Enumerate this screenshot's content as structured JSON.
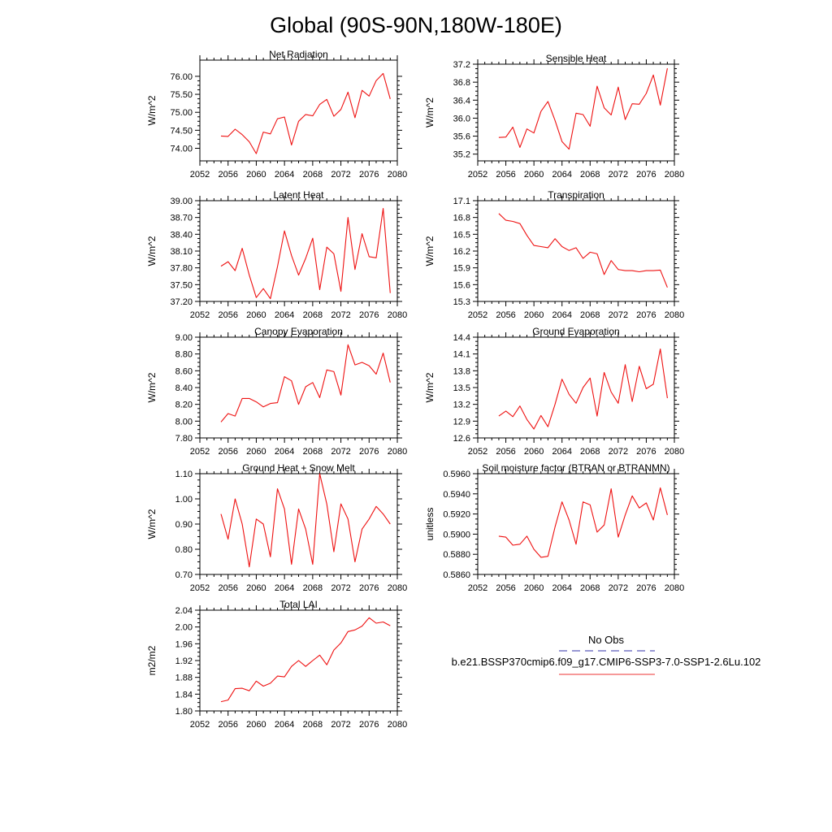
{
  "figure": {
    "title": "Global (90S-90N,180W-180E)"
  },
  "legend": {
    "items": [
      {
        "label": "No Obs",
        "color": "#3333aa",
        "style": "dashed"
      },
      {
        "label": "b.e21.BSSP370cmip6.f09_g17.CMIP6-SSP3-7.0-SSP1-2.6Lu.102",
        "color": "#ee3333",
        "style": "solid"
      }
    ]
  },
  "chart_data": [
    {
      "type": "line",
      "title": "Net Radiation",
      "ylabel": "W/m^2",
      "xlim": [
        2052,
        2080
      ],
      "ylim": [
        73.65,
        76.45
      ],
      "xticks": [
        2052,
        2056,
        2060,
        2064,
        2068,
        2072,
        2076,
        2080
      ],
      "xtick_labels": [
        "2052",
        "2056",
        "2060",
        "2064",
        "2068",
        "2072",
        "2076",
        "2080"
      ],
      "yticks": [
        74.0,
        74.5,
        75.0,
        75.5,
        76.0
      ],
      "ytick_labels": [
        "74.00",
        "74.50",
        "75.00",
        "75.50",
        "76.00"
      ],
      "series": [
        {
          "color": "#ee1111",
          "x": [
            2055,
            2056,
            2057,
            2058,
            2059,
            2060,
            2061,
            2062,
            2063,
            2064,
            2065,
            2066,
            2067,
            2068,
            2069,
            2070,
            2071,
            2072,
            2073,
            2074,
            2075,
            2076,
            2077,
            2078,
            2079
          ],
          "y": [
            74.34,
            74.33,
            74.53,
            74.38,
            74.18,
            73.85,
            74.45,
            74.4,
            74.82,
            74.87,
            74.09,
            74.75,
            74.94,
            74.9,
            75.22,
            75.36,
            74.89,
            75.08,
            75.56,
            74.85,
            75.61,
            75.45,
            75.88,
            76.08,
            75.37
          ]
        }
      ]
    },
    {
      "type": "line",
      "title": "Sensible Heat",
      "ylabel": "W/m^2",
      "xlim": [
        2052,
        2080
      ],
      "ylim": [
        35.05,
        37.2
      ],
      "xticks": [
        2052,
        2056,
        2060,
        2064,
        2068,
        2072,
        2076,
        2080
      ],
      "xtick_labels": [
        "2052",
        "2056",
        "2060",
        "2064",
        "2068",
        "2072",
        "2076",
        "2080"
      ],
      "yticks": [
        35.2,
        35.6,
        36.0,
        36.4,
        36.8,
        37.2
      ],
      "ytick_labels": [
        "35.2",
        "35.6",
        "36.0",
        "36.4",
        "36.8",
        "37.2"
      ],
      "series": [
        {
          "color": "#ee1111",
          "x": [
            2055,
            2056,
            2057,
            2058,
            2059,
            2060,
            2061,
            2062,
            2063,
            2064,
            2065,
            2066,
            2067,
            2068,
            2069,
            2070,
            2071,
            2072,
            2073,
            2074,
            2075,
            2076,
            2077,
            2078,
            2079
          ],
          "y": [
            35.57,
            35.58,
            35.8,
            35.35,
            35.76,
            35.67,
            36.15,
            36.37,
            35.95,
            35.48,
            35.31,
            36.11,
            36.08,
            35.82,
            36.71,
            36.23,
            36.07,
            36.69,
            35.97,
            36.32,
            36.31,
            36.55,
            36.96,
            36.29,
            37.11
          ]
        }
      ]
    },
    {
      "type": "line",
      "title": "Latent Heat",
      "ylabel": "W/m^2",
      "xlim": [
        2052,
        2080
      ],
      "ylim": [
        37.2,
        39.0
      ],
      "xticks": [
        2052,
        2056,
        2060,
        2064,
        2068,
        2072,
        2076,
        2080
      ],
      "xtick_labels": [
        "2052",
        "2056",
        "2060",
        "2064",
        "2068",
        "2072",
        "2076",
        "2080"
      ],
      "yticks": [
        37.2,
        37.5,
        37.8,
        38.1,
        38.4,
        38.7,
        39.0
      ],
      "ytick_labels": [
        "37.20",
        "37.50",
        "37.80",
        "38.10",
        "38.40",
        "38.70",
        "39.00"
      ],
      "series": [
        {
          "color": "#ee1111",
          "x": [
            2055,
            2056,
            2057,
            2058,
            2059,
            2060,
            2061,
            2062,
            2063,
            2064,
            2065,
            2066,
            2067,
            2068,
            2069,
            2070,
            2071,
            2072,
            2073,
            2074,
            2075,
            2076,
            2077,
            2078,
            2079
          ],
          "y": [
            37.83,
            37.91,
            37.75,
            38.15,
            37.67,
            37.27,
            37.43,
            37.25,
            37.82,
            38.46,
            38.02,
            37.67,
            37.97,
            38.33,
            37.41,
            38.17,
            38.05,
            37.38,
            38.7,
            37.77,
            38.41,
            38.0,
            37.98,
            38.86,
            37.35
          ]
        }
      ]
    },
    {
      "type": "line",
      "title": "Transpiration",
      "ylabel": "W/m^2",
      "xlim": [
        2052,
        2080
      ],
      "ylim": [
        15.3,
        17.1
      ],
      "xticks": [
        2052,
        2056,
        2060,
        2064,
        2068,
        2072,
        2076,
        2080
      ],
      "xtick_labels": [
        "2052",
        "2056",
        "2060",
        "2064",
        "2068",
        "2072",
        "2076",
        "2080"
      ],
      "yticks": [
        15.3,
        15.6,
        15.9,
        16.2,
        16.5,
        16.8,
        17.1
      ],
      "ytick_labels": [
        "15.3",
        "15.6",
        "15.9",
        "16.2",
        "16.5",
        "16.8",
        "17.1"
      ],
      "series": [
        {
          "color": "#ee1111",
          "x": [
            2055,
            2056,
            2057,
            2058,
            2059,
            2060,
            2061,
            2062,
            2063,
            2064,
            2065,
            2066,
            2067,
            2068,
            2069,
            2070,
            2071,
            2072,
            2073,
            2074,
            2075,
            2076,
            2077,
            2078,
            2079
          ],
          "y": [
            16.87,
            16.75,
            16.73,
            16.69,
            16.48,
            16.3,
            16.28,
            16.26,
            16.42,
            16.28,
            16.21,
            16.26,
            16.07,
            16.18,
            16.15,
            15.78,
            16.03,
            15.87,
            15.85,
            15.85,
            15.83,
            15.85,
            15.85,
            15.86,
            15.55
          ]
        }
      ]
    },
    {
      "type": "line",
      "title": "Canopy Evaporation",
      "ylabel": "W/m^2",
      "xlim": [
        2052,
        2080
      ],
      "ylim": [
        7.8,
        9.0
      ],
      "xticks": [
        2052,
        2056,
        2060,
        2064,
        2068,
        2072,
        2076,
        2080
      ],
      "xtick_labels": [
        "2052",
        "2056",
        "2060",
        "2064",
        "2068",
        "2072",
        "2076",
        "2080"
      ],
      "yticks": [
        7.8,
        8.0,
        8.2,
        8.4,
        8.6,
        8.8,
        9.0
      ],
      "ytick_labels": [
        "7.80",
        "8.00",
        "8.20",
        "8.40",
        "8.60",
        "8.80",
        "9.00"
      ],
      "series": [
        {
          "color": "#ee1111",
          "x": [
            2055,
            2056,
            2057,
            2058,
            2059,
            2060,
            2061,
            2062,
            2063,
            2064,
            2065,
            2066,
            2067,
            2068,
            2069,
            2070,
            2071,
            2072,
            2073,
            2074,
            2075,
            2076,
            2077,
            2078,
            2079
          ],
          "y": [
            7.99,
            8.09,
            8.06,
            8.27,
            8.27,
            8.23,
            8.17,
            8.21,
            8.22,
            8.53,
            8.48,
            8.2,
            8.41,
            8.46,
            8.28,
            8.61,
            8.59,
            8.31,
            8.91,
            8.67,
            8.7,
            8.66,
            8.56,
            8.81,
            8.46
          ]
        }
      ]
    },
    {
      "type": "line",
      "title": "Ground Evaporation",
      "ylabel": "W/m^2",
      "xlim": [
        2052,
        2080
      ],
      "ylim": [
        12.6,
        14.4
      ],
      "xticks": [
        2052,
        2056,
        2060,
        2064,
        2068,
        2072,
        2076,
        2080
      ],
      "xtick_labels": [
        "2052",
        "2056",
        "2060",
        "2064",
        "2068",
        "2072",
        "2076",
        "2080"
      ],
      "yticks": [
        12.6,
        12.9,
        13.2,
        13.5,
        13.8,
        14.1,
        14.4
      ],
      "ytick_labels": [
        "12.6",
        "12.9",
        "13.2",
        "13.5",
        "13.8",
        "14.1",
        "14.4"
      ],
      "series": [
        {
          "color": "#ee1111",
          "x": [
            2055,
            2056,
            2057,
            2058,
            2059,
            2060,
            2061,
            2062,
            2063,
            2064,
            2065,
            2066,
            2067,
            2068,
            2069,
            2070,
            2071,
            2072,
            2073,
            2074,
            2075,
            2076,
            2077,
            2078,
            2079
          ],
          "y": [
            12.99,
            13.08,
            12.98,
            13.17,
            12.93,
            12.76,
            13.0,
            12.8,
            13.2,
            13.65,
            13.38,
            13.22,
            13.5,
            13.67,
            12.99,
            13.77,
            13.42,
            13.22,
            13.91,
            13.25,
            13.88,
            13.48,
            13.56,
            14.19,
            13.31
          ]
        }
      ]
    },
    {
      "type": "line",
      "title": "Ground Heat + Snow Melt",
      "ylabel": "W/m^2",
      "xlim": [
        2052,
        2080
      ],
      "ylim": [
        0.7,
        1.1
      ],
      "xticks": [
        2052,
        2056,
        2060,
        2064,
        2068,
        2072,
        2076,
        2080
      ],
      "xtick_labels": [
        "2052",
        "2056",
        "2060",
        "2064",
        "2068",
        "2072",
        "2076",
        "2080"
      ],
      "yticks": [
        0.7,
        0.8,
        0.9,
        1.0,
        1.1
      ],
      "ytick_labels": [
        "0.70",
        "0.80",
        "0.90",
        "1.00",
        "1.10"
      ],
      "series": [
        {
          "color": "#ee1111",
          "x": [
            2055,
            2056,
            2057,
            2058,
            2059,
            2060,
            2061,
            2062,
            2063,
            2064,
            2065,
            2066,
            2067,
            2068,
            2069,
            2070,
            2071,
            2072,
            2073,
            2074,
            2075,
            2076,
            2077,
            2078,
            2079
          ],
          "y": [
            0.94,
            0.84,
            1.0,
            0.9,
            0.73,
            0.92,
            0.9,
            0.77,
            1.04,
            0.96,
            0.74,
            0.96,
            0.88,
            0.74,
            1.1,
            0.98,
            0.79,
            0.98,
            0.92,
            0.75,
            0.88,
            0.92,
            0.97,
            0.94,
            0.9
          ]
        }
      ]
    },
    {
      "type": "line",
      "title": "Soil moisture factor (BTRAN or BTRANMN)",
      "ylabel": "unitless",
      "xlim": [
        2052,
        2080
      ],
      "ylim": [
        0.586,
        0.596
      ],
      "xticks": [
        2052,
        2056,
        2060,
        2064,
        2068,
        2072,
        2076,
        2080
      ],
      "xtick_labels": [
        "2052",
        "2056",
        "2060",
        "2064",
        "2068",
        "2072",
        "2076",
        "2080"
      ],
      "yticks": [
        0.586,
        0.588,
        0.59,
        0.592,
        0.594,
        0.596
      ],
      "ytick_labels": [
        "0.5860",
        "0.5880",
        "0.5900",
        "0.5920",
        "0.5940",
        "0.5960"
      ],
      "series": [
        {
          "color": "#ee1111",
          "x": [
            2055,
            2056,
            2057,
            2058,
            2059,
            2060,
            2061,
            2062,
            2063,
            2064,
            2065,
            2066,
            2067,
            2068,
            2069,
            2070,
            2071,
            2072,
            2073,
            2074,
            2075,
            2076,
            2077,
            2078,
            2079
          ],
          "y": [
            0.5898,
            0.5897,
            0.5889,
            0.589,
            0.5898,
            0.5885,
            0.5877,
            0.5878,
            0.5907,
            0.5932,
            0.5914,
            0.589,
            0.5932,
            0.5929,
            0.5902,
            0.5909,
            0.5945,
            0.5897,
            0.5919,
            0.5938,
            0.5926,
            0.5931,
            0.5914,
            0.5946,
            0.5919
          ]
        }
      ]
    },
    {
      "type": "line",
      "title": "Total LAI",
      "ylabel": "m2/m2",
      "xlim": [
        2052,
        2080
      ],
      "ylim": [
        1.8,
        2.04
      ],
      "xticks": [
        2052,
        2056,
        2060,
        2064,
        2068,
        2072,
        2076,
        2080
      ],
      "xtick_labels": [
        "2052",
        "2056",
        "2060",
        "2064",
        "2068",
        "2072",
        "2076",
        "2080"
      ],
      "yticks": [
        1.8,
        1.84,
        1.88,
        1.92,
        1.96,
        2.0,
        2.04
      ],
      "ytick_labels": [
        "1.80",
        "1.84",
        "1.88",
        "1.92",
        "1.96",
        "2.00",
        "2.04"
      ],
      "series": [
        {
          "color": "#ee1111",
          "x": [
            2055,
            2056,
            2057,
            2058,
            2059,
            2060,
            2061,
            2062,
            2063,
            2064,
            2065,
            2066,
            2067,
            2068,
            2069,
            2070,
            2071,
            2072,
            2073,
            2074,
            2075,
            2076,
            2077,
            2078,
            2079
          ],
          "y": [
            1.822,
            1.826,
            1.853,
            1.854,
            1.848,
            1.871,
            1.859,
            1.866,
            1.883,
            1.881,
            1.906,
            1.92,
            1.906,
            1.92,
            1.933,
            1.91,
            1.945,
            1.962,
            1.989,
            1.993,
            2.002,
            2.022,
            2.009,
            2.012,
            2.003
          ]
        }
      ]
    }
  ]
}
